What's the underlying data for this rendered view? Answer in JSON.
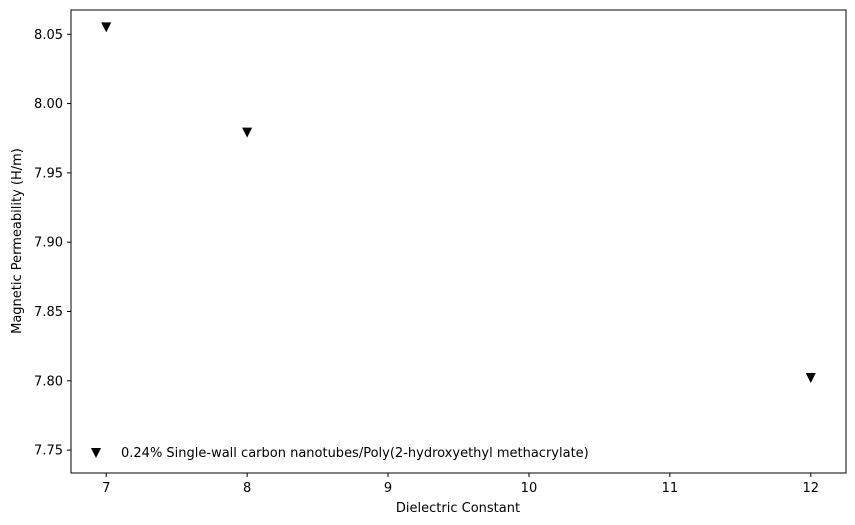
{
  "chart_data": {
    "type": "scatter",
    "title": "",
    "xlabel": "Dielectric Constant",
    "ylabel": "Magnetic Permeability (H/m)",
    "xlim": [
      6.75,
      12.25
    ],
    "ylim": [
      7.7335,
      8.0675
    ],
    "xticks": [
      7,
      8,
      9,
      10,
      11,
      12
    ],
    "yticks": [
      7.75,
      7.8,
      7.85,
      7.9,
      7.95,
      8.0,
      8.05
    ],
    "xtick_labels": [
      "7",
      "8",
      "9",
      "10",
      "11",
      "12"
    ],
    "ytick_labels": [
      "7.75",
      "7.80",
      "7.85",
      "7.90",
      "7.95",
      "8.00",
      "8.05"
    ],
    "grid": false,
    "legend_position": "lower-left",
    "series": [
      {
        "name": "0.24% Single-wall carbon nanotubes/Poly(2-hydroxyethyl methacrylate)",
        "marker": "triangle-down",
        "color": "#000000",
        "x": [
          7,
          8,
          12
        ],
        "y": [
          8.055,
          7.979,
          7.802
        ]
      }
    ]
  }
}
